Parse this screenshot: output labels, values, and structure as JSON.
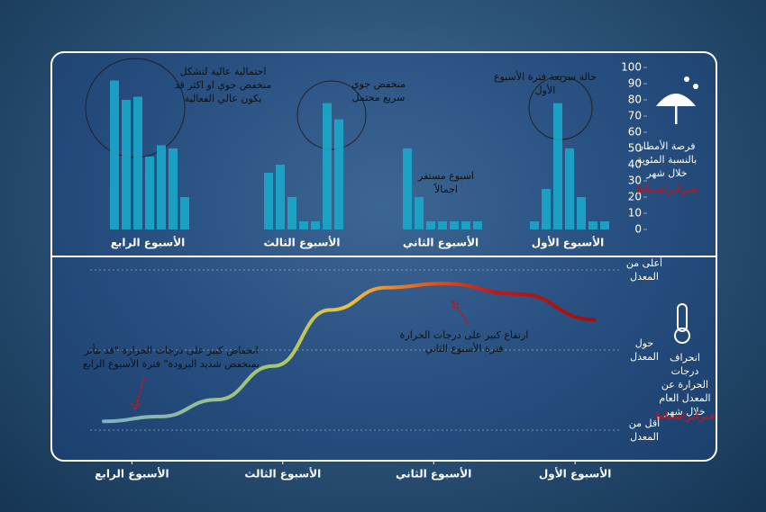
{
  "chart_data": [
    {
      "type": "bar",
      "y_label": "فرصة الأمطار بالنسبة المئوية خلال شهر",
      "y_label_month": "فبراير/شباط",
      "ylim": [
        0,
        100
      ],
      "yticks": [
        0,
        10,
        20,
        30,
        40,
        50,
        60,
        70,
        80,
        90,
        100
      ],
      "series": [
        {
          "name": "الأسبوع الأول",
          "color": "#1aa7c9",
          "values": [
            5,
            25,
            78,
            50,
            20,
            5,
            5
          ]
        },
        {
          "name": "الأسبوع الثاني",
          "color": "#1aa7c9",
          "values": [
            50,
            20,
            5,
            5,
            5,
            5,
            5
          ]
        },
        {
          "name": "الأسبوع الثالث",
          "color": "#1aa7c9",
          "values": [
            35,
            40,
            20,
            5,
            5,
            78,
            68
          ]
        },
        {
          "name": "الأسبوع الرابع",
          "color": "#1aa7c9",
          "values": [
            92,
            80,
            82,
            45,
            52,
            50,
            20
          ]
        }
      ],
      "annotations": [
        "احتمالية عالية لتشكل منخفض جوي او اكثر قد يكون عالي الفعالية",
        "منخفض جوي سريع محتمل",
        "اسبوع مستقر اجمالاً",
        "حالة سريعة فترة الأسبوع الأول"
      ]
    },
    {
      "type": "line",
      "y_label": "انحراف درجات الحرارة عن المعدل العام خلال شهر",
      "y_label_month": "فبراير/شباط",
      "ylim": [
        -1,
        1
      ],
      "yticks": [
        {
          "value": 1,
          "label": "أعلى من المعدل"
        },
        {
          "value": 0,
          "label": "حول المعدل"
        },
        {
          "value": -1,
          "label": "أقل من المعدل"
        }
      ],
      "xlim": [
        1,
        28
      ],
      "xticks": [
        {
          "value": 3,
          "label": "الأسبوع الأول"
        },
        {
          "value": 10.5,
          "label": "الأسبوع الثاني"
        },
        {
          "value": 18.5,
          "label": "الأسبوع الثالث"
        },
        {
          "value": 26.5,
          "label": "الأسبوع الرابع"
        }
      ],
      "x": [
        2,
        6,
        10,
        13,
        16,
        19,
        22,
        25,
        28
      ],
      "y": [
        0.38,
        0.7,
        0.83,
        0.78,
        0.5,
        -0.2,
        -0.62,
        -0.83,
        -0.89
      ],
      "annotations": [
        "ارتفاع كبير على درجات الحرارة فترة الأسبوع الثاني",
        "انخفاض كبير على درجات الحرارة \"قد تتأثر بمنخفض شديد البرودة\" فترة الأسبوع الرابع"
      ]
    }
  ]
}
